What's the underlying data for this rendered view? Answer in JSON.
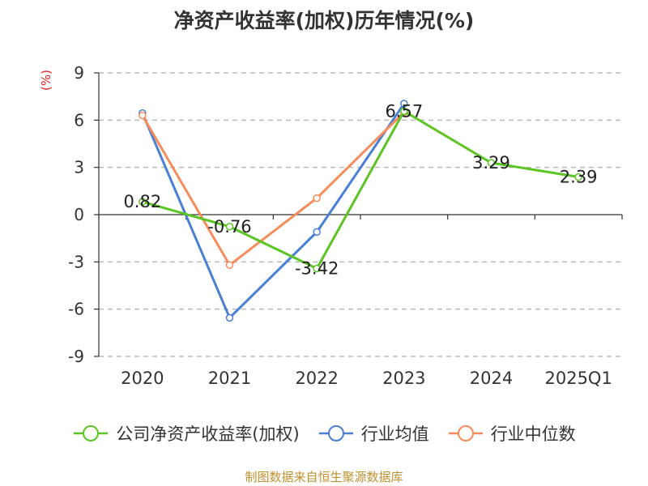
{
  "chart_data": {
    "type": "line",
    "title": "净资产收益率(加权)历年情况(%)",
    "ylabel": "(%)",
    "categories": [
      "2020",
      "2021",
      "2022",
      "2023",
      "2024",
      "2025Q1"
    ],
    "ylim": [
      -9,
      9
    ],
    "yticks": [
      9,
      6,
      3,
      0,
      -3,
      -6,
      -9
    ],
    "grid": true,
    "legend": "bottom",
    "series": [
      {
        "name": "公司净资产收益率(加权)",
        "color": "#5cc424",
        "values": [
          0.82,
          -0.76,
          -3.42,
          6.57,
          3.29,
          2.39
        ],
        "labels": [
          "0.82",
          "-0.76",
          "-3.42",
          "6.57",
          "3.29",
          "2.39"
        ]
      },
      {
        "name": "行业均值",
        "color": "#4a7fd6",
        "values": [
          6.45,
          -6.55,
          -1.1,
          7.05,
          null,
          null
        ]
      },
      {
        "name": "行业中位数",
        "color": "#f58c5a",
        "values": [
          6.3,
          -3.2,
          1.05,
          6.5,
          null,
          null
        ]
      }
    ]
  },
  "source": "制图数据来自恒生聚源数据库"
}
